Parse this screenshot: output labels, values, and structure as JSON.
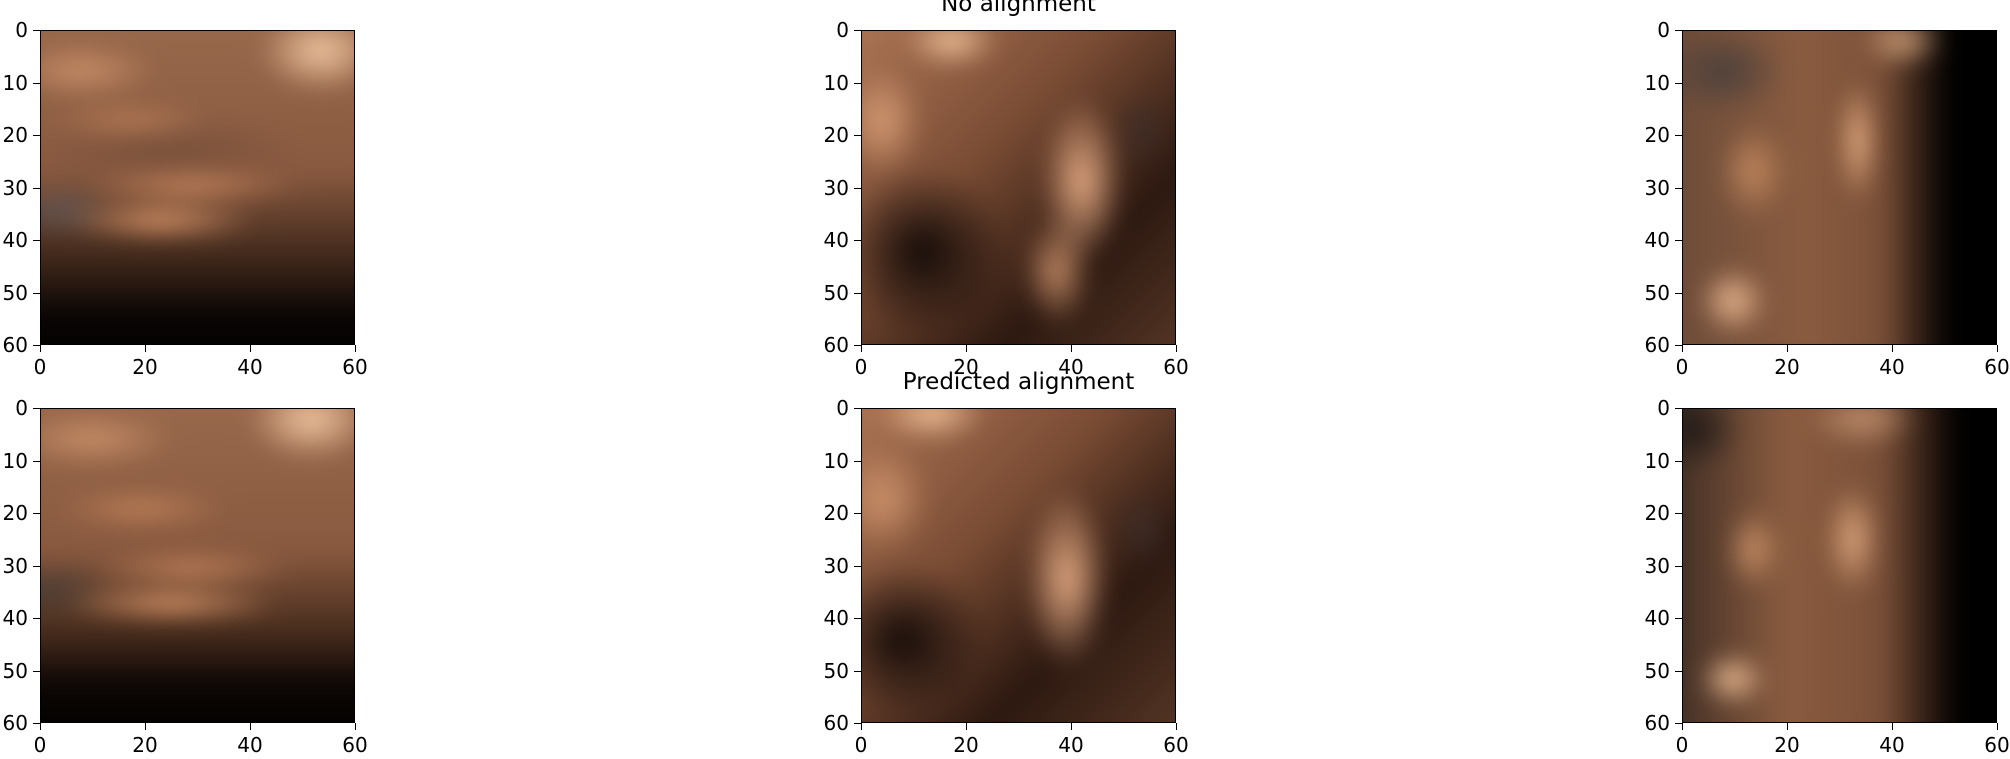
{
  "figure": {
    "panels": [
      {
        "id": "p1",
        "row": 0,
        "col": 0,
        "title": "",
        "x_ticks": [
          "0",
          "20",
          "40",
          "60"
        ],
        "y_ticks": [
          "0",
          "10",
          "20",
          "30",
          "40",
          "50",
          "60"
        ]
      },
      {
        "id": "p2",
        "row": 0,
        "col": 1,
        "title": "No alignment",
        "x_ticks": [
          "0",
          "20",
          "40",
          "60"
        ],
        "y_ticks": [
          "0",
          "10",
          "20",
          "30",
          "40",
          "50",
          "60"
        ]
      },
      {
        "id": "p3",
        "row": 0,
        "col": 2,
        "title": "",
        "x_ticks": [
          "0",
          "20",
          "40",
          "60"
        ],
        "y_ticks": [
          "0",
          "10",
          "20",
          "30",
          "40",
          "50",
          "60"
        ]
      },
      {
        "id": "p4",
        "row": 1,
        "col": 0,
        "title": "",
        "x_ticks": [
          "0",
          "20",
          "40",
          "60"
        ],
        "y_ticks": [
          "0",
          "10",
          "20",
          "30",
          "40",
          "50",
          "60"
        ]
      },
      {
        "id": "p5",
        "row": 1,
        "col": 1,
        "title": "Predicted alignment",
        "x_ticks": [
          "0",
          "20",
          "40",
          "60"
        ],
        "y_ticks": [
          "0",
          "10",
          "20",
          "30",
          "40",
          "50",
          "60"
        ]
      },
      {
        "id": "p6",
        "row": 1,
        "col": 2,
        "title": "",
        "x_ticks": [
          "0",
          "20",
          "40",
          "60"
        ],
        "y_ticks": [
          "0",
          "10",
          "20",
          "30",
          "40",
          "50",
          "60"
        ]
      }
    ]
  }
}
